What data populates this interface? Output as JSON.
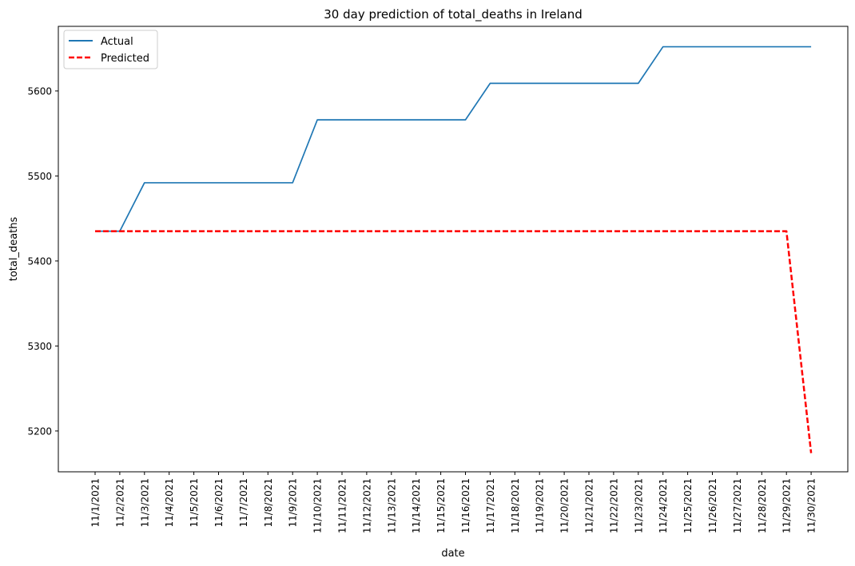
{
  "chart_data": {
    "type": "line",
    "title": "30 day prediction of total_deaths in Ireland",
    "xlabel": "date",
    "ylabel": "total_deaths",
    "x": [
      "11/1/2021",
      "11/2/2021",
      "11/3/2021",
      "11/4/2021",
      "11/5/2021",
      "11/6/2021",
      "11/7/2021",
      "11/8/2021",
      "11/9/2021",
      "11/10/2021",
      "11/11/2021",
      "11/12/2021",
      "11/13/2021",
      "11/14/2021",
      "11/15/2021",
      "11/16/2021",
      "11/17/2021",
      "11/18/2021",
      "11/19/2021",
      "11/20/2021",
      "11/21/2021",
      "11/22/2021",
      "11/23/2021",
      "11/24/2021",
      "11/25/2021",
      "11/26/2021",
      "11/27/2021",
      "11/28/2021",
      "11/29/2021",
      "11/30/2021"
    ],
    "yticks": [
      5200,
      5300,
      5400,
      5500,
      5600
    ],
    "ylim": [
      5152,
      5676
    ],
    "grid": false,
    "legend_position": "upper left",
    "series": [
      {
        "name": "Actual",
        "color": "#1f77b4",
        "style": "solid",
        "values": [
          5435,
          5435,
          5492,
          5492,
          5492,
          5492,
          5492,
          5492,
          5492,
          5566,
          5566,
          5566,
          5566,
          5566,
          5566,
          5566,
          5609,
          5609,
          5609,
          5609,
          5609,
          5609,
          5609,
          5652,
          5652,
          5652,
          5652,
          5652,
          5652,
          5652
        ]
      },
      {
        "name": "Predicted",
        "color": "#ff0000",
        "style": "dashed",
        "values": [
          5435,
          5435,
          5435,
          5435,
          5435,
          5435,
          5435,
          5435,
          5435,
          5435,
          5435,
          5435,
          5435,
          5435,
          5435,
          5435,
          5435,
          5435,
          5435,
          5435,
          5435,
          5435,
          5435,
          5435,
          5435,
          5435,
          5435,
          5435,
          5435,
          5174
        ]
      }
    ]
  }
}
